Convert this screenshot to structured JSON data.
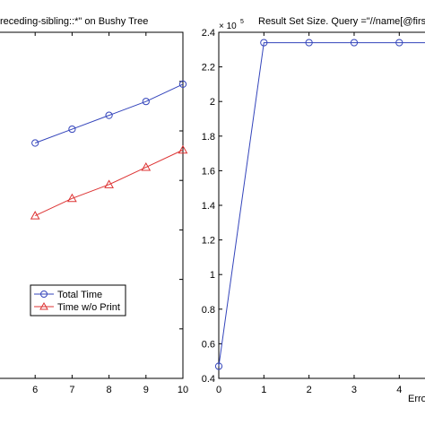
{
  "chart_data": [
    {
      "type": "line",
      "title": "receding-sibling::*\" on Bushy Tree",
      "xlabel": "",
      "ylabel": "",
      "xlim": [
        5.0,
        10
      ],
      "x_ticks": [
        "6",
        "7",
        "8",
        "9",
        "10"
      ],
      "y_ticks": [],
      "series": [
        {
          "name": "Total Time",
          "marker": "circle",
          "color": "#3344bb",
          "x": [
            6,
            7,
            8,
            9,
            10
          ],
          "y": [
            0.68,
            0.72,
            0.76,
            0.8,
            0.85
          ]
        },
        {
          "name": "Time w/o Print",
          "marker": "triangle",
          "color": "#dd3333",
          "x": [
            6,
            7,
            8,
            9,
            10
          ],
          "y": [
            0.47,
            0.52,
            0.56,
            0.61,
            0.66
          ]
        }
      ],
      "legend": {
        "placement": "lower-center",
        "entries": [
          "Total Time",
          "Time w/o Print"
        ]
      }
    },
    {
      "type": "line",
      "title": "Result Set Size. Query =\"//name[@firs",
      "xlabel": "Erro",
      "ylabel": "",
      "exponent_label": "× 10",
      "exponent_power": "5",
      "xlim": [
        0,
        4.65
      ],
      "ylim": [
        0.4,
        2.4
      ],
      "x_ticks": [
        "0",
        "1",
        "2",
        "3",
        "4"
      ],
      "y_ticks": [
        "0.4",
        "0.6",
        "0.8",
        "1",
        "1.2",
        "1.4",
        "1.6",
        "1.8",
        "2",
        "2.2",
        "2.4"
      ],
      "series": [
        {
          "name": "",
          "marker": "circle",
          "color": "#3344bb",
          "x": [
            0,
            1,
            2,
            3,
            4,
            5
          ],
          "y": [
            0.47,
            2.34,
            2.34,
            2.34,
            2.34,
            2.34
          ]
        }
      ]
    }
  ]
}
